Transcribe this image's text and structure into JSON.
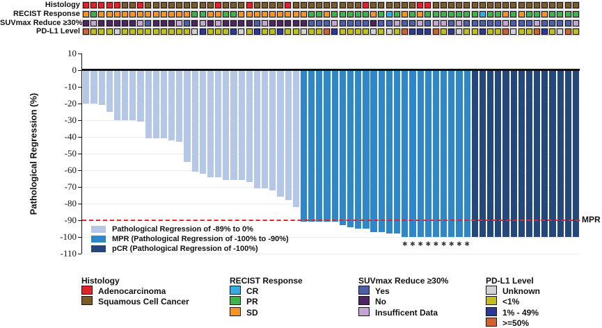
{
  "tracks": {
    "labels": [
      "Histology",
      "RECIST Response",
      "SUVmax Reduce ≥30%",
      "PD-L1 Level"
    ],
    "histology": [
      "A",
      "A",
      "A",
      "A",
      "A",
      "S",
      "S",
      "A",
      "S",
      "S",
      "S",
      "S",
      "S",
      "S",
      "S",
      "S",
      "S",
      "A",
      "S",
      "S",
      "S",
      "A",
      "S",
      "S",
      "S",
      "S",
      "A",
      "S",
      "S",
      "S",
      "S",
      "S",
      "S",
      "S",
      "S",
      "S",
      "A",
      "S",
      "S",
      "S",
      "S",
      "S",
      "S",
      "A",
      "A",
      "S",
      "S",
      "S",
      "S",
      "S",
      "S",
      "S",
      "S",
      "S",
      "S",
      "S",
      "S",
      "S",
      "S",
      "S",
      "S",
      "S",
      "S",
      "S"
    ],
    "recist": [
      "SD",
      "PR",
      "SD",
      "SD",
      "SD",
      "SD",
      "SD",
      "SD",
      "SD",
      "SD",
      "SD",
      "SD",
      "SD",
      "SD",
      "PR",
      "PR",
      "SD",
      "SD",
      "PR",
      "PR",
      "SD",
      "SD",
      "SD",
      "SD",
      "SD",
      "SD",
      "SD",
      "SD",
      "SD",
      "PR",
      "PR",
      "SD",
      "PR",
      "PR",
      "PR",
      "PR",
      "PR",
      "SD",
      "PR",
      "CR",
      "PR",
      "SD",
      "PR",
      "SD",
      "PR",
      "PR",
      "PR",
      "PR",
      "PR",
      "PR",
      "PR",
      "CR",
      "PR",
      "PR",
      "SD",
      "PR",
      "SD",
      "PR",
      "PR",
      "SD",
      "PR",
      "PR",
      "PR",
      "PR"
    ],
    "suvmax": [
      "N",
      "I",
      "N",
      "N",
      "N",
      "N",
      "N",
      "I",
      "Y",
      "N",
      "N",
      "N",
      "I",
      "Y",
      "N",
      "I",
      "N",
      "I",
      "N",
      "N",
      "N",
      "N",
      "Y",
      "I",
      "N",
      "N",
      "N",
      "N",
      "N",
      "Y",
      "Y",
      "Y",
      "I",
      "Y",
      "Y",
      "Y",
      "Y",
      "N",
      "Y",
      "Y",
      "I",
      "Y",
      "Y",
      "I",
      "Y",
      "I",
      "I",
      "Y",
      "I",
      "Y",
      "Y",
      "Y",
      "Y",
      "Y",
      "I",
      "Y",
      "Y",
      "Y",
      "I",
      "Y",
      "Y",
      "Y",
      "Y",
      "I"
    ],
    "pdl1": [
      "H",
      "L",
      "L",
      "L",
      "U",
      "L",
      "L",
      "L",
      "L",
      "L",
      "L",
      "L",
      "L",
      "L",
      "U",
      "M",
      "L",
      "L",
      "L",
      "M",
      "U",
      "L",
      "M",
      "L",
      "L",
      "M",
      "L",
      "L",
      "U",
      "L",
      "L",
      "H",
      "M",
      "L",
      "L",
      "L",
      "L",
      "U",
      "L",
      "U",
      "L",
      "H",
      "M",
      "M",
      "M",
      "H",
      "L",
      "M",
      "U",
      "L",
      "L",
      "M",
      "L",
      "L",
      "H",
      "U",
      "L",
      "L",
      "H",
      "M",
      "L",
      "U",
      "H",
      "L"
    ]
  },
  "colors": {
    "histology": {
      "A": "#e32126",
      "S": "#7b5c24"
    },
    "recist": {
      "CR": "#30aee4",
      "PR": "#3cb44b",
      "SD": "#f7941e"
    },
    "suvmax": {
      "Y": "#4d5fa8",
      "N": "#4f2464",
      "I": "#c3a5d1"
    },
    "pdl1": {
      "U": "#d2d2d2",
      "L": "#c2c016",
      "M": "#2d3a94",
      "H": "#d2622b"
    },
    "bar_light": "#b5c7e7",
    "bar_mpr": "#2e87c8",
    "bar_pcr": "#24487c",
    "mpr_line": "#ed2024"
  },
  "chart_data": {
    "type": "bar",
    "title": "",
    "ylabel": "Pathological Regression (%)",
    "ylim": [
      -110,
      10
    ],
    "yticks": [
      10,
      0,
      -10,
      -20,
      -30,
      -40,
      -50,
      -60,
      -70,
      -80,
      -90,
      -100,
      -110
    ],
    "grid": "horizontal-faint",
    "values": [
      -20,
      -20,
      -21,
      -25,
      -30,
      -30,
      -30,
      -31,
      -41,
      -41,
      -41,
      -42,
      -43,
      -55,
      -61,
      -62,
      -64,
      -64,
      -66,
      -66,
      -66,
      -67,
      -71,
      -71,
      -72,
      -76,
      -78,
      -82,
      -91,
      -91,
      -91,
      -91,
      -91,
      -93,
      -94,
      -95,
      -95,
      -97,
      -97,
      -98,
      -98,
      -100,
      -100,
      -100,
      -100,
      -100,
      -100,
      -100,
      -100,
      -100,
      -100,
      -100,
      -100,
      -100,
      -100,
      -100,
      -100,
      -100,
      -100,
      -100,
      -100,
      -100,
      -100,
      -100
    ],
    "groups": {
      "light_count": 28,
      "mpr_count": 22,
      "pcr_count": 14
    },
    "asterisk_indices": [
      41,
      42,
      43,
      44,
      45,
      46,
      47,
      48,
      49
    ],
    "asterisk_glyph": "✱",
    "mpr_line_y": -90,
    "mpr_line_label": "MPR",
    "legend": [
      {
        "key": "bar_light",
        "label": "Pathological Regression of -89% to 0%"
      },
      {
        "key": "bar_mpr",
        "label": "MPR (Pathological Regression of -100% to -90%)"
      },
      {
        "key": "bar_pcr",
        "label": "pCR (Pathological Regression of -100%)"
      }
    ]
  },
  "bottom_legend": [
    {
      "title": "Histology",
      "items": [
        {
          "color": "#e32126",
          "label": "Adenocarcinoma"
        },
        {
          "color": "#7b5c24",
          "label": "Squamous Cell Cancer"
        }
      ]
    },
    {
      "title": "RECIST Response",
      "items": [
        {
          "color": "#30aee4",
          "label": "CR"
        },
        {
          "color": "#3cb44b",
          "label": "PR"
        },
        {
          "color": "#f7941e",
          "label": "SD"
        }
      ]
    },
    {
      "title": "SUVmax Reduce ≥30%",
      "items": [
        {
          "color": "#4d5fa8",
          "label": "Yes"
        },
        {
          "color": "#4f2464",
          "label": "No"
        },
        {
          "color": "#c3a5d1",
          "label": "Insufficent Data"
        }
      ]
    },
    {
      "title": "PD-L1 Level",
      "items": [
        {
          "color": "#d2d2d2",
          "label": "Unknown"
        },
        {
          "color": "#c2c016",
          "label": "<1%"
        },
        {
          "color": "#2d3a94",
          "label": "1% - 49%"
        },
        {
          "color": "#d2622b",
          "label": ">=50%"
        }
      ]
    }
  ]
}
